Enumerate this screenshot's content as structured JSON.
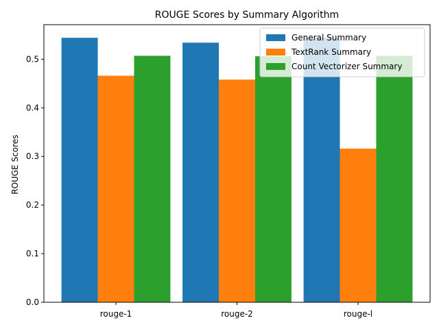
{
  "chart_data": {
    "type": "bar",
    "title": "ROUGE Scores by Summary Algorithm",
    "xlabel": "",
    "ylabel": "ROUGE Scores",
    "categories": [
      "rouge-1",
      "rouge-2",
      "rouge-l"
    ],
    "series": [
      {
        "name": "General Summary",
        "color": "#1f77b4",
        "values": [
          0.544,
          0.534,
          0.544
        ]
      },
      {
        "name": "TextRank Summary",
        "color": "#ff7f0e",
        "values": [
          0.466,
          0.458,
          0.316
        ]
      },
      {
        "name": "Count Vectorizer Summary",
        "color": "#2ca02c",
        "values": [
          0.507,
          0.506,
          0.507
        ]
      }
    ],
    "ylim": [
      0,
      0.571
    ],
    "yticks": [
      0.0,
      0.1,
      0.2,
      0.3,
      0.4,
      0.5
    ],
    "ytick_labels": [
      "0.0",
      "0.1",
      "0.2",
      "0.3",
      "0.4",
      "0.5"
    ],
    "grid": false,
    "legend_position": "top-right"
  }
}
